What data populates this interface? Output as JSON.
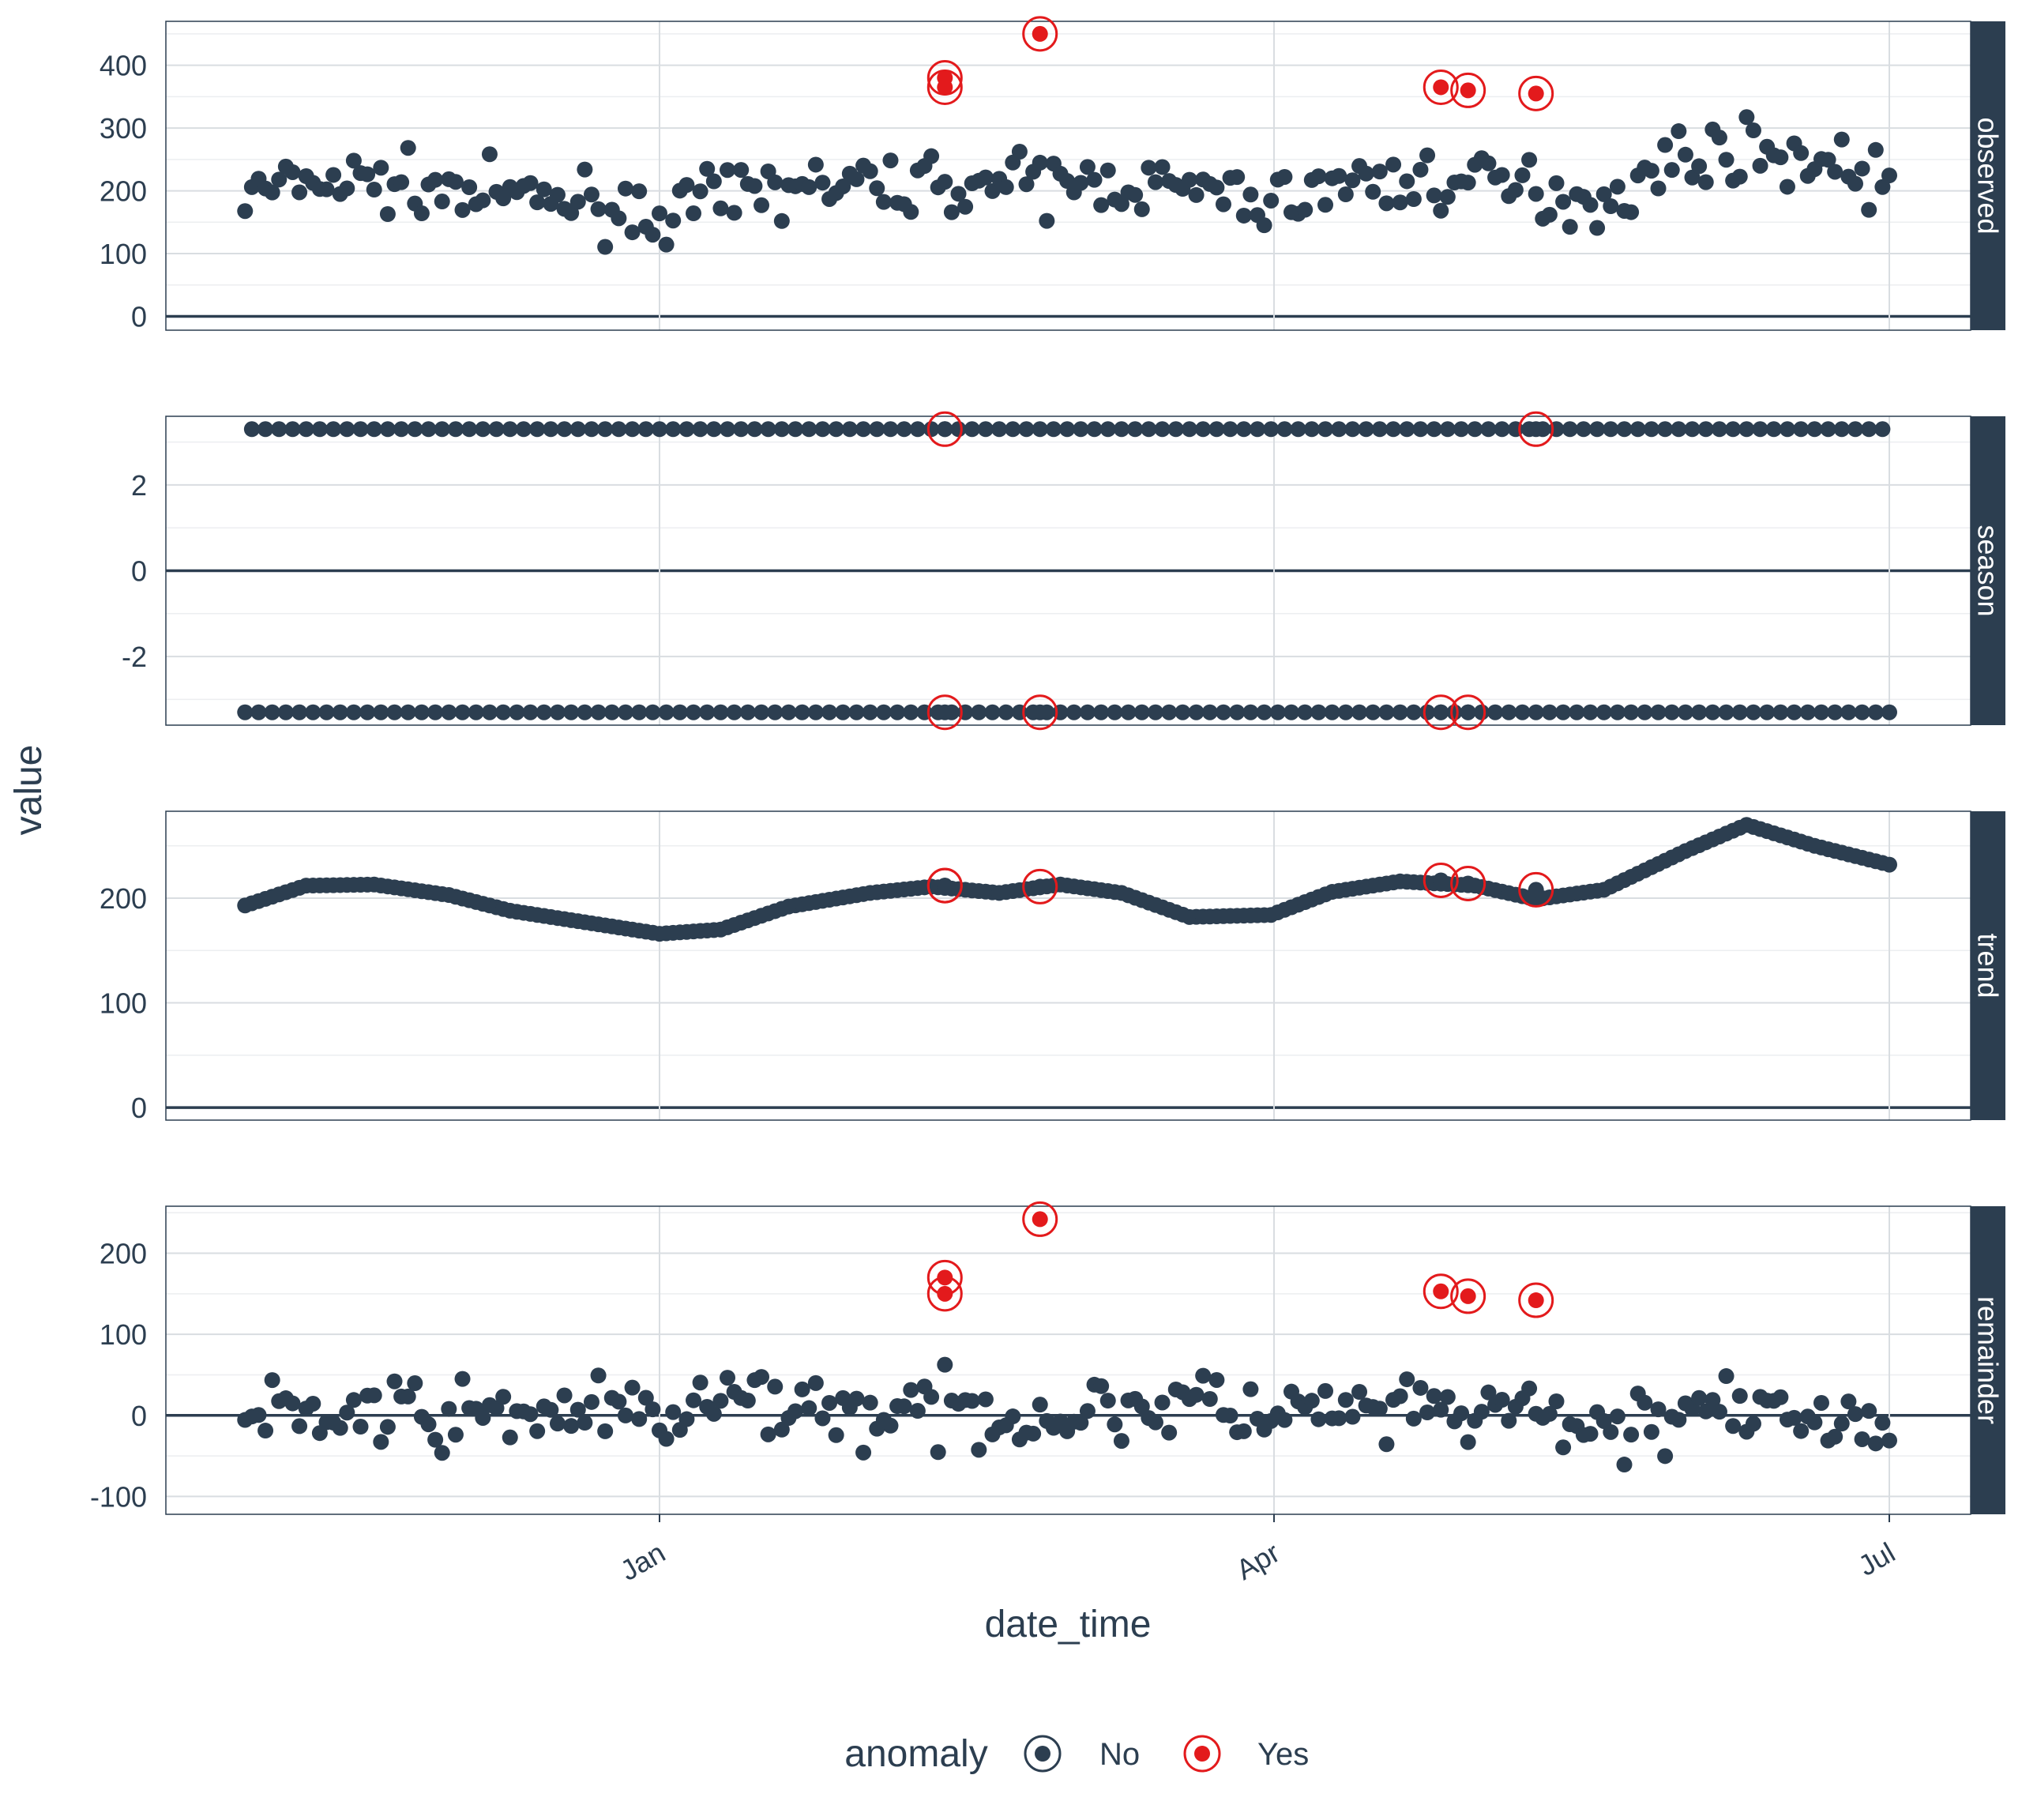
{
  "chart_data": {
    "type": "scatter",
    "xlabel": "date_time",
    "ylabel": "value",
    "x_ticks": [
      "Jan",
      "Apr",
      "Jul"
    ],
    "x_range": [
      "2017-10-20",
      "2018-07-15"
    ],
    "grid": true,
    "legend": {
      "title": "anomaly",
      "entries": [
        "No",
        "Yes"
      ],
      "position": "bottom"
    },
    "colors": {
      "no": "#2c3e50",
      "yes": "#e31a1c",
      "strip": "#2c3e50",
      "grid": "#d9dde1"
    },
    "panels": [
      {
        "name": "observed",
        "yticks": [
          0,
          100,
          200,
          300,
          400
        ],
        "ylim": [
          -22,
          470
        ]
      },
      {
        "name": "season",
        "yticks": [
          -2,
          0,
          2
        ],
        "ylim": [
          -3.6,
          3.6
        ]
      },
      {
        "name": "trend",
        "yticks": [
          0,
          100,
          200
        ],
        "ylim": [
          -12,
          283
        ]
      },
      {
        "name": "remainder",
        "yticks": [
          -100,
          0,
          100,
          200
        ],
        "ylim": [
          -122,
          258
        ]
      }
    ],
    "x": [
      "2017-11-01",
      "2017-11-10",
      "2017-11-20",
      "2017-12-01",
      "2017-12-10",
      "2017-12-20",
      "2018-01-01",
      "2018-01-10",
      "2018-01-20",
      "2018-02-01",
      "2018-02-10",
      "2018-02-20",
      "2018-03-01",
      "2018-03-10",
      "2018-03-20",
      "2018-04-01",
      "2018-04-10",
      "2018-04-20",
      "2018-05-01",
      "2018-05-10",
      "2018-05-20",
      "2018-06-01",
      "2018-06-10",
      "2018-06-20",
      "2018-07-01"
    ],
    "series": [
      {
        "name": "observed",
        "values": [
          190,
          215,
          215,
          200,
          190,
          185,
          160,
          185,
          210,
          205,
          215,
          210,
          210,
          215,
          200,
          180,
          210,
          215,
          215,
          200,
          185,
          255,
          265,
          250,
          215
        ]
      },
      {
        "name": "season",
        "values": [
          3.3,
          -3.3,
          3.3,
          -3.3,
          3.3,
          -3.3,
          3.3,
          -3.3,
          3.3,
          -3.3,
          3.3,
          -3.3,
          3.3,
          -3.3,
          3.3,
          -3.3,
          3.3,
          -3.3,
          3.3,
          -3.3,
          3.3,
          -3.3,
          3.3,
          -3.3,
          3.3
        ]
      },
      {
        "name": "trend",
        "values": [
          193,
          212,
          213,
          203,
          188,
          178,
          166,
          170,
          192,
          205,
          211,
          205,
          213,
          205,
          182,
          184,
          206,
          216,
          212,
          199,
          208,
          245,
          270,
          250,
          232
        ]
      },
      {
        "name": "remainder",
        "values": [
          -5,
          3,
          2,
          -3,
          2,
          7,
          -6,
          15,
          18,
          0,
          4,
          5,
          -3,
          10,
          18,
          -4,
          4,
          -1,
          3,
          1,
          -23,
          10,
          -5,
          0,
          -17
        ]
      }
    ],
    "anomalies": [
      {
        "date": "2018-02-12",
        "observed": 380,
        "season": 3.3,
        "trend": 212,
        "remainder": 170
      },
      {
        "date": "2018-02-12",
        "observed": 365,
        "season": -3.3,
        "trend": 212,
        "remainder": 150
      },
      {
        "date": "2018-02-26",
        "observed": 450,
        "season": -3.3,
        "trend": 211,
        "remainder": 242
      },
      {
        "date": "2018-04-26",
        "observed": 365,
        "season": -3.3,
        "trend": 217,
        "remainder": 153
      },
      {
        "date": "2018-04-30",
        "observed": 360,
        "season": -3.3,
        "trend": 214,
        "remainder": 147
      },
      {
        "date": "2018-05-10",
        "observed": 355,
        "season": 3.3,
        "trend": 208,
        "remainder": 142
      }
    ]
  }
}
